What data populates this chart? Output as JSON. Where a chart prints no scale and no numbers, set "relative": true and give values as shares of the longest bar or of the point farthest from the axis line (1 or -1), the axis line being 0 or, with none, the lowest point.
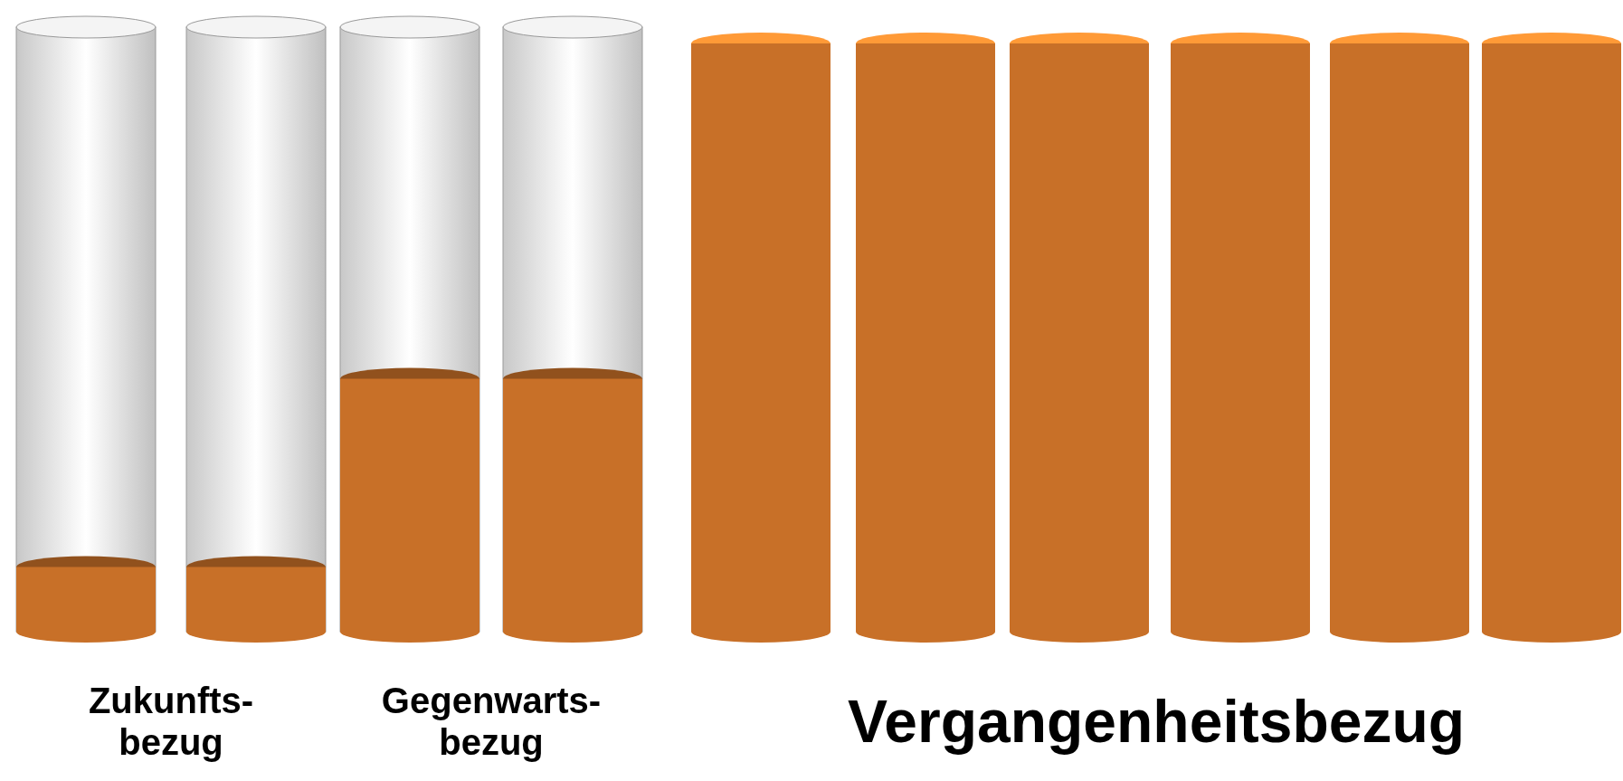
{
  "chart_data": {
    "type": "bar",
    "relative": true,
    "categories": [
      null,
      null,
      null,
      null,
      null,
      null,
      null,
      null,
      null,
      null
    ],
    "values": [
      0.11,
      0.11,
      0.43,
      0.43,
      1,
      1,
      1,
      1,
      1,
      1
    ],
    "color": "#c87028",
    "annotations": [
      "Zukunfts-\nbezug",
      "Gegenwarts-\nbezug",
      "Vergangenheitsbezug"
    ]
  }
}
